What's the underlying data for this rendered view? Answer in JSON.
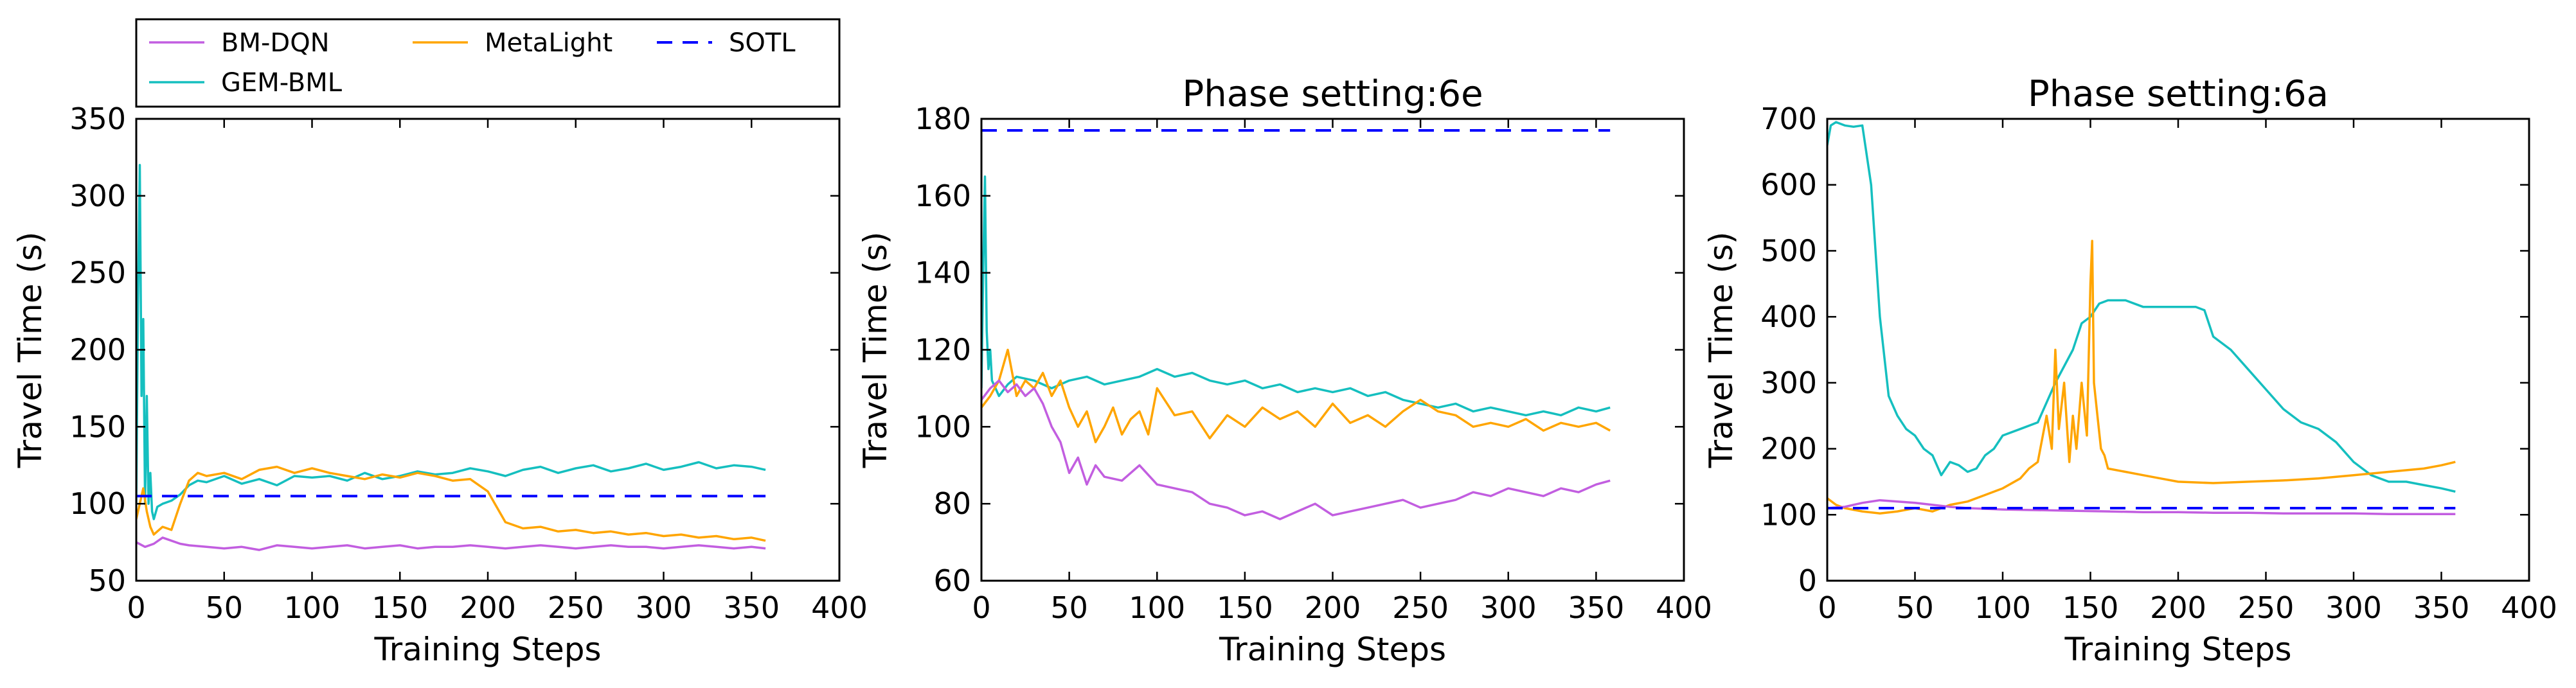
{
  "colors": {
    "bm_dqn": "#c25ee0",
    "gem_bml": "#15bfbf",
    "metalight": "#ffa500",
    "sotl": "#0000ff"
  },
  "legend": {
    "entries": [
      {
        "key": "bm_dqn",
        "label": "BM-DQN",
        "style": "solid"
      },
      {
        "key": "gem_bml",
        "label": "GEM-BML",
        "style": "solid"
      },
      {
        "key": "metalight",
        "label": "MetaLight",
        "style": "solid"
      },
      {
        "key": "sotl",
        "label": "SOTL",
        "style": "dashed"
      }
    ]
  },
  "chart_data": [
    {
      "type": "line",
      "title": "",
      "xlabel": "Training Steps",
      "ylabel": "Travel Time (s)",
      "xlim": [
        0,
        400
      ],
      "ylim": [
        50,
        350
      ],
      "xticks": [
        0,
        50,
        100,
        150,
        200,
        250,
        300,
        350,
        400
      ],
      "yticks": [
        50,
        100,
        150,
        200,
        250,
        300,
        350
      ],
      "series": [
        {
          "key": "gem_bml",
          "name": "GEM-BML",
          "style": "solid",
          "x": [
            0,
            1,
            2,
            3,
            4,
            5,
            6,
            7,
            8,
            9,
            10,
            12,
            15,
            20,
            25,
            30,
            35,
            40,
            50,
            60,
            70,
            80,
            90,
            100,
            110,
            120,
            130,
            140,
            150,
            160,
            170,
            180,
            190,
            200,
            210,
            220,
            230,
            240,
            250,
            260,
            270,
            280,
            290,
            300,
            310,
            320,
            330,
            340,
            350,
            358
          ],
          "y": [
            100,
            230,
            320,
            170,
            220,
            100,
            170,
            100,
            120,
            95,
            90,
            98,
            100,
            102,
            106,
            112,
            115,
            114,
            118,
            113,
            116,
            112,
            118,
            117,
            118,
            115,
            120,
            116,
            118,
            121,
            119,
            120,
            123,
            121,
            118,
            122,
            124,
            120,
            123,
            125,
            121,
            123,
            126,
            122,
            124,
            127,
            123,
            125,
            124,
            122
          ]
        },
        {
          "key": "metalight",
          "name": "MetaLight",
          "style": "solid",
          "x": [
            0,
            2,
            4,
            6,
            8,
            10,
            15,
            20,
            25,
            30,
            35,
            40,
            50,
            60,
            70,
            80,
            90,
            100,
            110,
            120,
            130,
            140,
            150,
            160,
            170,
            180,
            190,
            195,
            200,
            205,
            210,
            220,
            230,
            240,
            250,
            260,
            270,
            280,
            290,
            300,
            310,
            320,
            330,
            340,
            350,
            358
          ],
          "y": [
            90,
            100,
            110,
            95,
            85,
            80,
            85,
            83,
            100,
            115,
            120,
            118,
            120,
            116,
            122,
            124,
            120,
            123,
            120,
            118,
            116,
            119,
            117,
            120,
            118,
            115,
            116,
            112,
            108,
            98,
            88,
            84,
            85,
            82,
            83,
            81,
            82,
            80,
            81,
            79,
            80,
            78,
            79,
            77,
            78,
            76
          ]
        },
        {
          "key": "bm_dqn",
          "name": "BM-DQN",
          "style": "solid",
          "x": [
            0,
            5,
            10,
            15,
            20,
            25,
            30,
            40,
            50,
            60,
            70,
            80,
            90,
            100,
            110,
            120,
            130,
            140,
            150,
            160,
            170,
            180,
            190,
            200,
            210,
            220,
            230,
            240,
            250,
            260,
            270,
            280,
            290,
            300,
            310,
            320,
            330,
            340,
            350,
            358
          ],
          "y": [
            75,
            72,
            74,
            78,
            76,
            74,
            73,
            72,
            71,
            72,
            70,
            73,
            72,
            71,
            72,
            73,
            71,
            72,
            73,
            71,
            72,
            72,
            73,
            72,
            71,
            72,
            73,
            72,
            71,
            72,
            73,
            72,
            72,
            71,
            72,
            73,
            72,
            71,
            72,
            71
          ]
        },
        {
          "key": "sotl",
          "name": "SOTL",
          "style": "dashed",
          "x": [
            0,
            358
          ],
          "y": [
            105,
            105
          ]
        }
      ]
    },
    {
      "type": "line",
      "title": "Phase setting:6e",
      "xlabel": "Training Steps",
      "ylabel": "Travel Time (s)",
      "xlim": [
        0,
        400
      ],
      "ylim": [
        60,
        180
      ],
      "xticks": [
        0,
        50,
        100,
        150,
        200,
        250,
        300,
        350,
        400
      ],
      "yticks": [
        60,
        80,
        100,
        120,
        140,
        160,
        180
      ],
      "series": [
        {
          "key": "sotl",
          "name": "SOTL",
          "style": "dashed",
          "x": [
            0,
            358
          ],
          "y": [
            177,
            177
          ]
        },
        {
          "key": "gem_bml",
          "name": "GEM-BML",
          "style": "solid",
          "x": [
            0,
            1,
            2,
            3,
            4,
            5,
            6,
            8,
            10,
            15,
            20,
            30,
            40,
            50,
            60,
            70,
            80,
            90,
            100,
            110,
            120,
            130,
            140,
            150,
            160,
            170,
            180,
            190,
            200,
            210,
            220,
            230,
            240,
            250,
            260,
            270,
            280,
            290,
            300,
            310,
            320,
            330,
            340,
            350,
            358
          ],
          "y": [
            110,
            140,
            165,
            125,
            115,
            120,
            112,
            110,
            108,
            111,
            113,
            112,
            110,
            112,
            113,
            111,
            112,
            113,
            115,
            113,
            114,
            112,
            111,
            112,
            110,
            111,
            109,
            110,
            109,
            110,
            108,
            109,
            107,
            106,
            105,
            106,
            104,
            105,
            104,
            103,
            104,
            103,
            105,
            104,
            105
          ]
        },
        {
          "key": "metalight",
          "name": "MetaLight",
          "style": "solid",
          "x": [
            0,
            5,
            10,
            15,
            20,
            25,
            30,
            35,
            40,
            45,
            50,
            55,
            60,
            65,
            70,
            75,
            80,
            85,
            90,
            95,
            100,
            110,
            120,
            130,
            140,
            150,
            160,
            170,
            180,
            190,
            200,
            210,
            220,
            230,
            240,
            250,
            260,
            270,
            280,
            290,
            300,
            310,
            320,
            330,
            340,
            350,
            358
          ],
          "y": [
            105,
            108,
            112,
            120,
            108,
            112,
            110,
            114,
            108,
            112,
            105,
            100,
            104,
            96,
            100,
            105,
            98,
            102,
            104,
            98,
            110,
            103,
            104,
            97,
            103,
            100,
            105,
            102,
            104,
            100,
            106,
            101,
            103,
            100,
            104,
            107,
            104,
            103,
            100,
            101,
            100,
            102,
            99,
            101,
            100,
            101,
            99
          ]
        },
        {
          "key": "bm_dqn",
          "name": "BM-DQN",
          "style": "solid",
          "x": [
            0,
            5,
            10,
            15,
            20,
            25,
            30,
            35,
            40,
            45,
            50,
            55,
            60,
            65,
            70,
            80,
            90,
            100,
            110,
            120,
            130,
            140,
            150,
            160,
            170,
            180,
            190,
            200,
            210,
            220,
            230,
            240,
            250,
            260,
            270,
            280,
            290,
            300,
            310,
            320,
            330,
            340,
            350,
            358
          ],
          "y": [
            107,
            110,
            112,
            109,
            111,
            108,
            110,
            106,
            100,
            96,
            88,
            92,
            85,
            90,
            87,
            86,
            90,
            85,
            84,
            83,
            80,
            79,
            77,
            78,
            76,
            78,
            80,
            77,
            78,
            79,
            80,
            81,
            79,
            80,
            81,
            83,
            82,
            84,
            83,
            82,
            84,
            83,
            85,
            86
          ]
        }
      ]
    },
    {
      "type": "line",
      "title": "Phase setting:6a",
      "xlabel": "Training Steps",
      "ylabel": "Travel Time (s)",
      "xlim": [
        0,
        400
      ],
      "ylim": [
        0,
        700
      ],
      "xticks": [
        0,
        50,
        100,
        150,
        200,
        250,
        300,
        350,
        400
      ],
      "yticks": [
        0,
        100,
        200,
        300,
        400,
        500,
        600,
        700
      ],
      "series": [
        {
          "key": "gem_bml",
          "name": "GEM-BML",
          "style": "solid",
          "x": [
            0,
            2,
            5,
            10,
            15,
            20,
            25,
            30,
            35,
            40,
            45,
            50,
            55,
            60,
            65,
            70,
            75,
            80,
            85,
            90,
            95,
            100,
            110,
            120,
            130,
            140,
            145,
            150,
            155,
            160,
            170,
            180,
            190,
            200,
            210,
            215,
            220,
            230,
            240,
            250,
            260,
            270,
            280,
            290,
            300,
            310,
            320,
            330,
            340,
            350,
            358
          ],
          "y": [
            660,
            690,
            695,
            690,
            688,
            690,
            600,
            400,
            280,
            250,
            230,
            220,
            200,
            190,
            160,
            180,
            175,
            165,
            170,
            190,
            200,
            220,
            230,
            240,
            300,
            350,
            390,
            400,
            420,
            425,
            425,
            415,
            415,
            415,
            415,
            410,
            370,
            350,
            320,
            290,
            260,
            240,
            230,
            210,
            180,
            160,
            150,
            150,
            145,
            140,
            135
          ]
        },
        {
          "key": "metalight",
          "name": "MetaLight",
          "style": "solid",
          "x": [
            0,
            5,
            10,
            20,
            30,
            40,
            50,
            60,
            70,
            80,
            90,
            100,
            110,
            115,
            120,
            125,
            128,
            130,
            132,
            135,
            138,
            140,
            142,
            145,
            148,
            150,
            151,
            152,
            154,
            156,
            158,
            160,
            170,
            180,
            190,
            200,
            220,
            240,
            260,
            280,
            300,
            320,
            340,
            350,
            358
          ],
          "y": [
            125,
            115,
            110,
            105,
            102,
            105,
            110,
            105,
            115,
            120,
            130,
            140,
            155,
            170,
            180,
            250,
            200,
            350,
            230,
            300,
            180,
            250,
            200,
            300,
            220,
            450,
            515,
            300,
            250,
            200,
            190,
            170,
            165,
            160,
            155,
            150,
            148,
            150,
            152,
            155,
            160,
            165,
            170,
            175,
            180
          ]
        },
        {
          "key": "bm_dqn",
          "name": "BM-DQN",
          "style": "solid",
          "x": [
            0,
            10,
            20,
            30,
            40,
            50,
            60,
            70,
            80,
            100,
            120,
            140,
            160,
            180,
            200,
            220,
            240,
            260,
            280,
            300,
            320,
            340,
            358
          ],
          "y": [
            110,
            112,
            118,
            122,
            120,
            118,
            115,
            112,
            110,
            108,
            107,
            106,
            105,
            104,
            104,
            103,
            103,
            102,
            102,
            102,
            101,
            101,
            101
          ]
        },
        {
          "key": "sotl",
          "name": "SOTL",
          "style": "dashed",
          "x": [
            0,
            358
          ],
          "y": [
            110,
            110
          ]
        }
      ]
    }
  ]
}
